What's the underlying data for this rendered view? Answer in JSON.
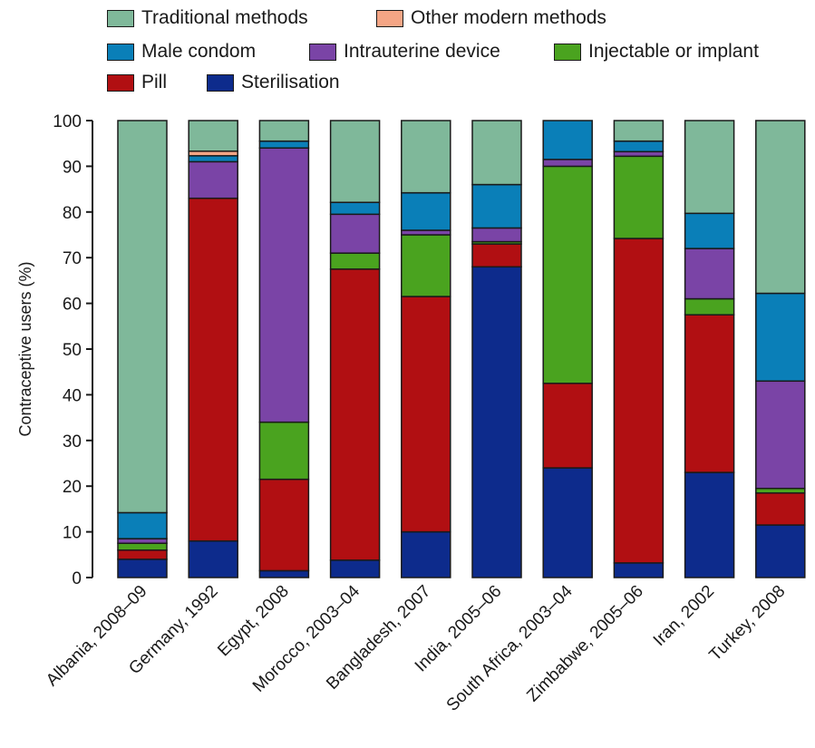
{
  "chart_data": {
    "type": "bar",
    "stacked": true,
    "title": "",
    "xlabel": "",
    "ylabel": "Contraceptive users (%)",
    "ylim": [
      0,
      100
    ],
    "yticks": [
      0,
      10,
      20,
      30,
      40,
      50,
      60,
      70,
      80,
      90,
      100
    ],
    "grid": false,
    "legend_position": "top",
    "categories": [
      "Albania, 2008–09",
      "Germany, 1992",
      "Egypt, 2008",
      "Morocco, 2003–04",
      "Bangladesh, 2007",
      "India, 2005–06",
      "South Africa, 2003–04",
      "Zimbabwe, 2005–06",
      "Iran, 2002",
      "Turkey, 2008"
    ],
    "series": [
      {
        "name": "Sterilisation",
        "key": "sterilisation",
        "color": "#0d2b8c",
        "values": [
          4.0,
          8.0,
          1.5,
          3.8,
          10.0,
          68.0,
          24.0,
          3.2,
          23.0,
          11.5
        ]
      },
      {
        "name": "Pill",
        "key": "pill",
        "color": "#b10f12",
        "values": [
          2.0,
          75.0,
          20.0,
          63.7,
          51.5,
          5.0,
          18.5,
          71.0,
          34.5,
          7.0
        ]
      },
      {
        "name": "Injectable or implant",
        "key": "injectable",
        "color": "#4aa31f",
        "values": [
          1.5,
          0.0,
          12.5,
          3.5,
          13.5,
          0.5,
          47.5,
          18.0,
          3.5,
          1.0
        ]
      },
      {
        "name": "Intrauterine device",
        "key": "iud",
        "color": "#7a44a6",
        "values": [
          1.0,
          8.0,
          60.0,
          8.5,
          1.0,
          3.0,
          1.5,
          1.0,
          11.0,
          23.5
        ]
      },
      {
        "name": "Male condom",
        "key": "condom",
        "color": "#0a7fb8",
        "values": [
          5.7,
          1.3,
          1.5,
          2.6,
          8.2,
          9.5,
          8.5,
          2.3,
          7.7,
          19.2
        ]
      },
      {
        "name": "Other modern methods",
        "key": "other",
        "color": "#f4a585",
        "values": [
          0.0,
          1.0,
          0.0,
          0.0,
          0.0,
          0.0,
          0.0,
          0.0,
          0.0,
          0.0
        ]
      },
      {
        "name": "Traditional methods",
        "key": "traditional",
        "color": "#7fb89a",
        "values": [
          85.8,
          6.7,
          4.5,
          17.9,
          15.8,
          14.0,
          0.0,
          4.5,
          20.3,
          37.8
        ]
      }
    ],
    "legend": [
      {
        "label": "Traditional methods",
        "key": "traditional"
      },
      {
        "label": "Other modern methods",
        "key": "other"
      },
      {
        "label": "Male condom",
        "key": "condom"
      },
      {
        "label": "Intrauterine device",
        "key": "iud"
      },
      {
        "label": "Injectable or implant",
        "key": "injectable"
      },
      {
        "label": "Pill",
        "key": "pill"
      },
      {
        "label": "Sterilisation",
        "key": "sterilisation"
      }
    ]
  }
}
